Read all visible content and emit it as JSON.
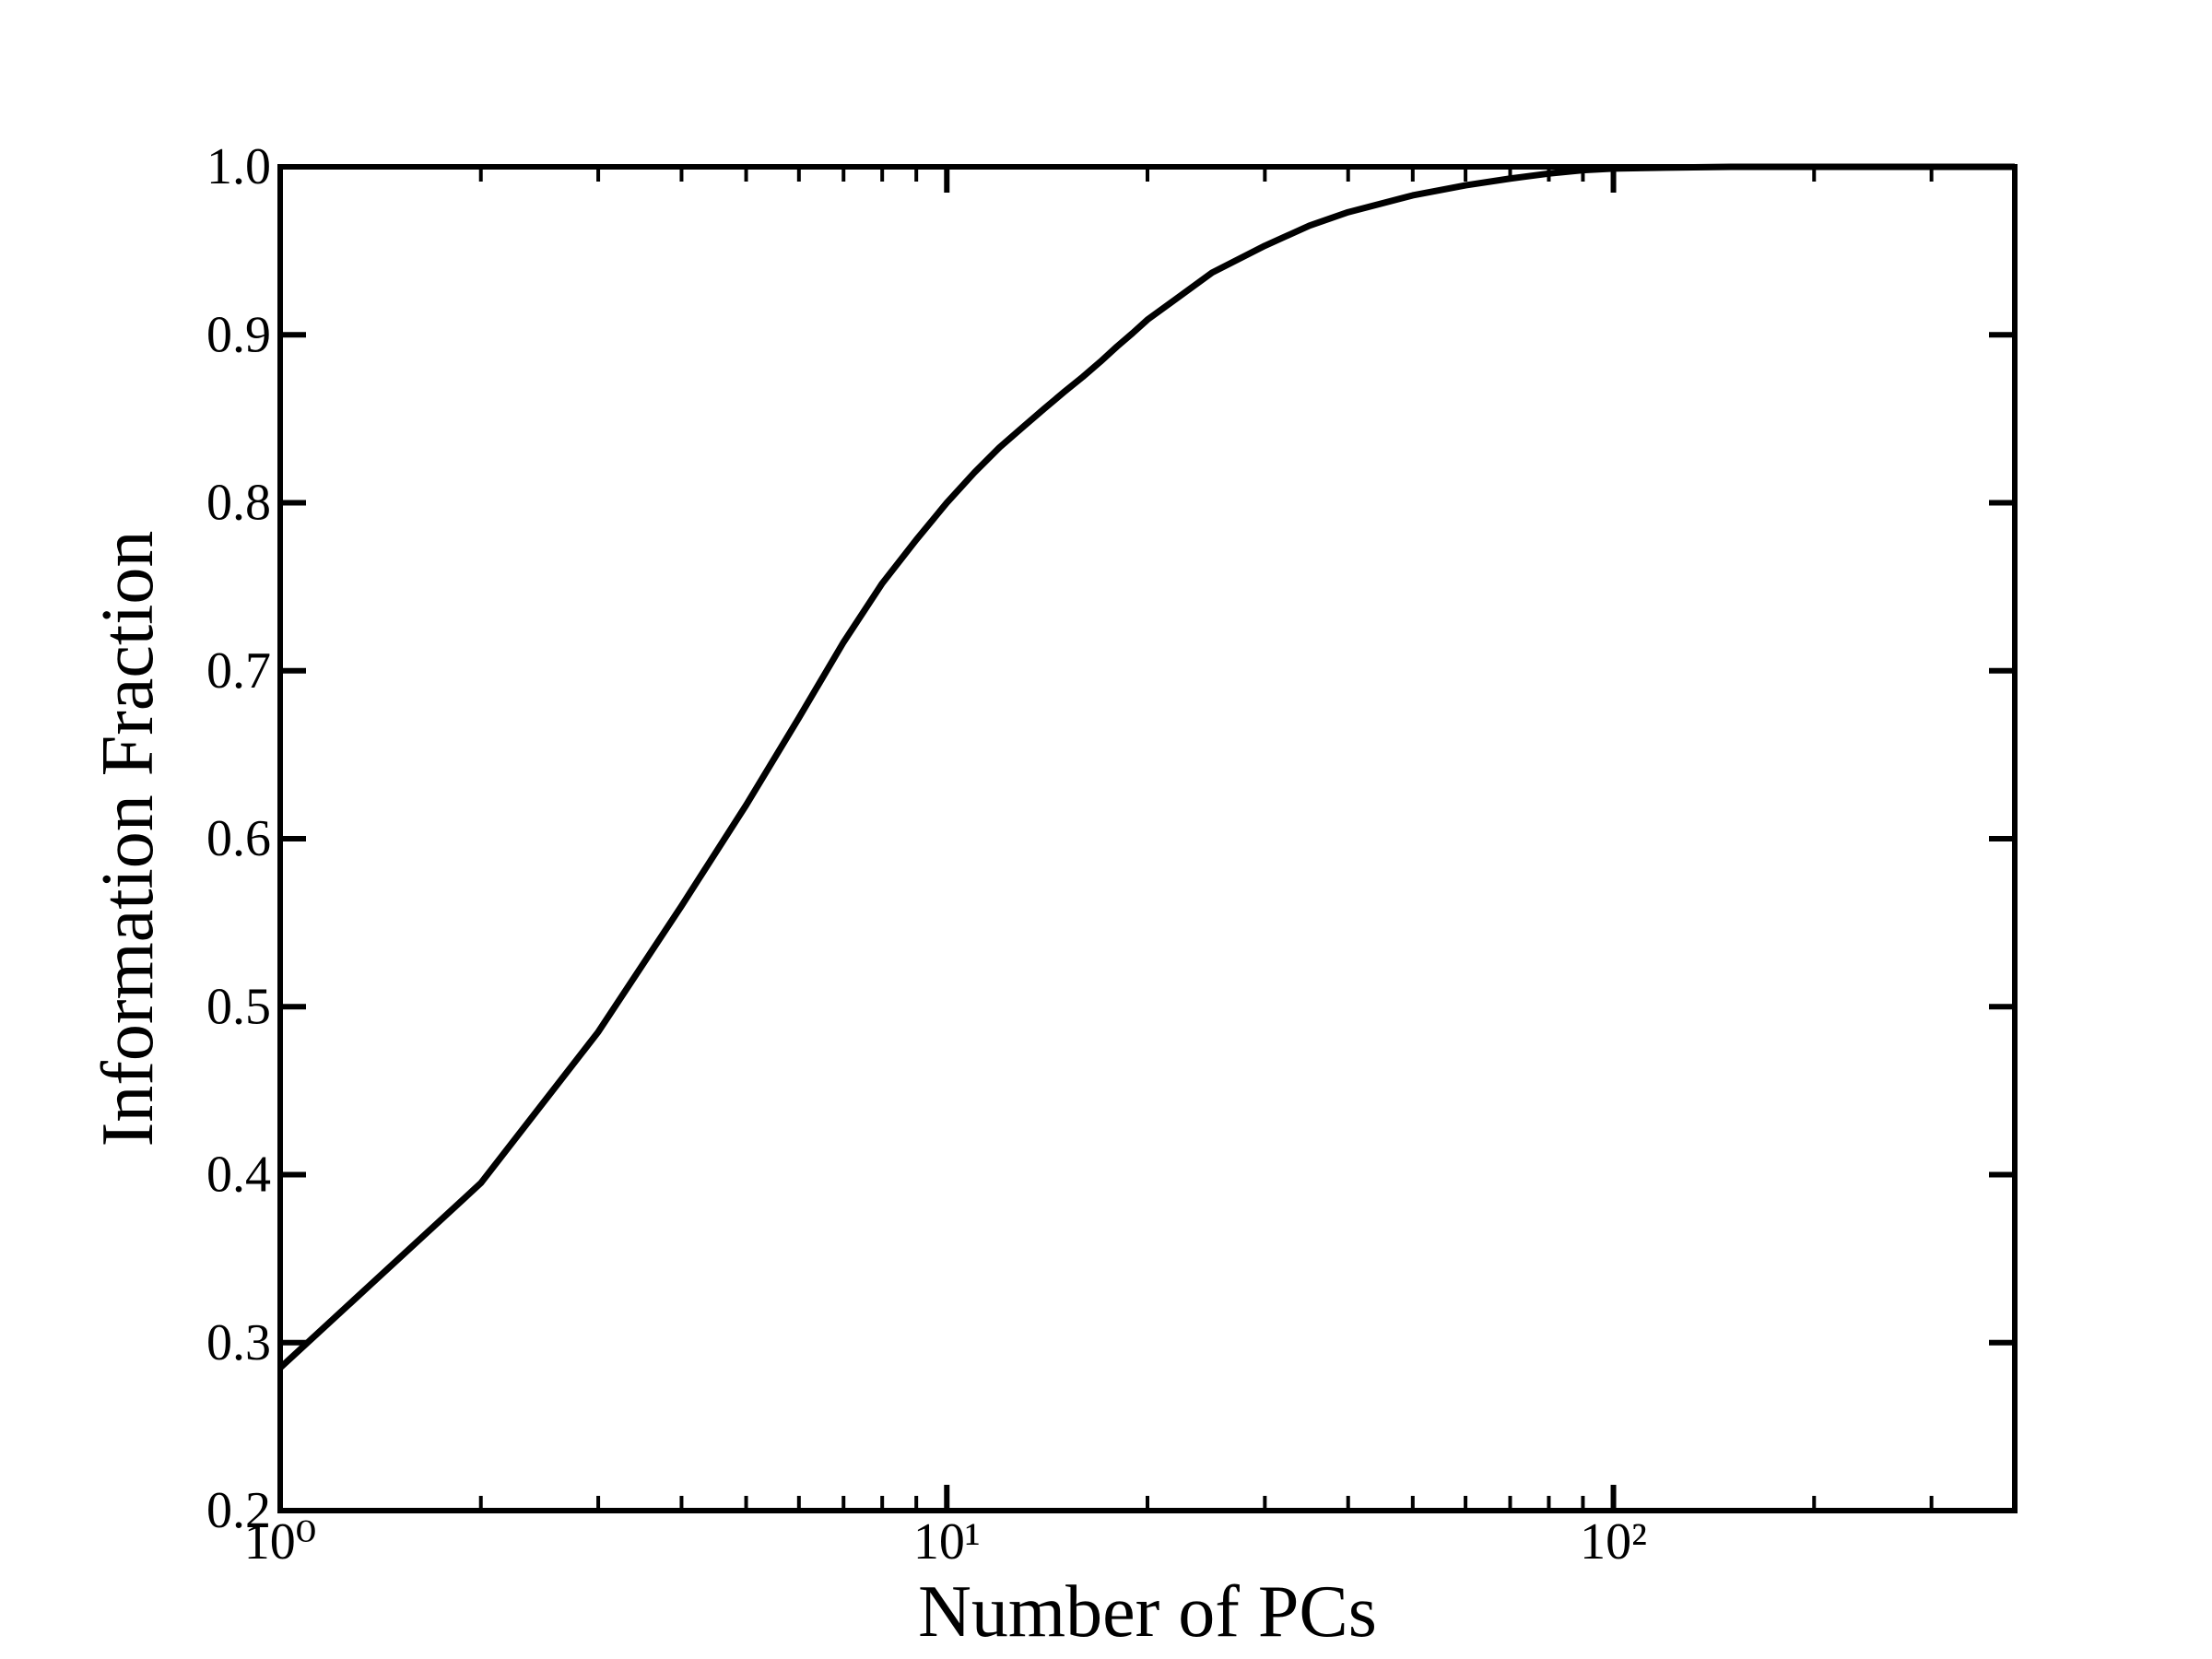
{
  "chart_data": {
    "type": "line",
    "x_label": "Number of PCs",
    "y_label": "Information Fraction",
    "x": [
      1,
      2,
      3,
      4,
      5,
      6,
      7,
      8,
      9,
      10,
      11,
      12,
      13,
      14,
      15,
      16,
      17,
      18,
      19,
      20,
      25,
      30,
      35,
      40,
      50,
      60,
      70,
      80,
      90,
      100,
      120,
      150,
      200,
      300,
      400
    ],
    "series": [
      {
        "color": "#000000",
        "values": [
          0.285,
          0.395,
          0.485,
          0.56,
          0.62,
          0.672,
          0.717,
          0.752,
          0.778,
          0.8,
          0.818,
          0.833,
          0.845,
          0.856,
          0.866,
          0.875,
          0.884,
          0.893,
          0.901,
          0.909,
          0.937,
          0.953,
          0.965,
          0.973,
          0.983,
          0.989,
          0.993,
          0.996,
          0.998,
          0.999,
          0.9995,
          1.0,
          1.0,
          1.0,
          1.0
        ]
      }
    ],
    "xscale": "log",
    "xlim": [
      1,
      400
    ],
    "xticks": [
      {
        "value": 1,
        "label": "10⁰"
      },
      {
        "value": 10,
        "label": "10¹"
      },
      {
        "value": 100,
        "label": "10²"
      }
    ],
    "xminorticks": [
      2,
      3,
      4,
      5,
      6,
      7,
      8,
      9,
      20,
      30,
      40,
      50,
      60,
      70,
      80,
      90,
      200,
      300,
      400
    ],
    "ylim": [
      0.2,
      1.0
    ],
    "yticks": [
      0.2,
      0.3,
      0.4,
      0.5,
      0.6,
      0.7,
      0.8,
      0.9,
      {
        "value": 1,
        "label": "1.0"
      }
    ],
    "grid": false
  }
}
